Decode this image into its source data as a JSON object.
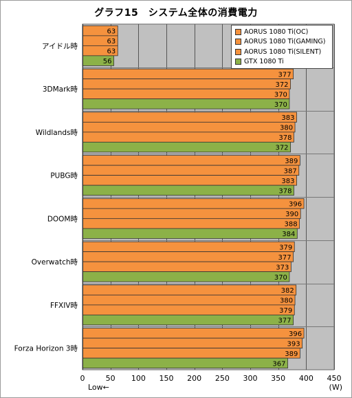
{
  "chart_data": {
    "type": "bar",
    "orientation": "horizontal",
    "title": "グラフ15　システム全体の消費電力",
    "categories": [
      "アイドル時",
      "3DMark時",
      "Wildlands時",
      "PUBG時",
      "DOOM時",
      "Overwatch時",
      "FFXIV時",
      "Forza Horizon 3時"
    ],
    "series": [
      {
        "name": "AORUS 1080 Ti(OC)",
        "color": "#f5923e",
        "values": [
          63,
          377,
          383,
          389,
          396,
          379,
          382,
          396
        ]
      },
      {
        "name": "AORUS 1080 Ti(GAMING)",
        "color": "#f5923e",
        "values": [
          63,
          372,
          380,
          387,
          390,
          377,
          380,
          393
        ]
      },
      {
        "name": "AORUS 1080 Ti(SILENT)",
        "color": "#f5923e",
        "values": [
          63,
          370,
          378,
          383,
          388,
          373,
          379,
          389
        ]
      },
      {
        "name": "GTX 1080 Ti",
        "color": "#8cb148",
        "values": [
          56,
          370,
          372,
          378,
          384,
          370,
          377,
          367
        ]
      }
    ],
    "xlim": [
      0,
      450
    ],
    "xticks": [
      0,
      50,
      100,
      150,
      200,
      250,
      300,
      350,
      400,
      450
    ],
    "xlabel_left": "Low←",
    "xlabel_right": "(W)",
    "legend_position": "top-right",
    "grid": true,
    "plot_background": "#c0c0c0"
  }
}
